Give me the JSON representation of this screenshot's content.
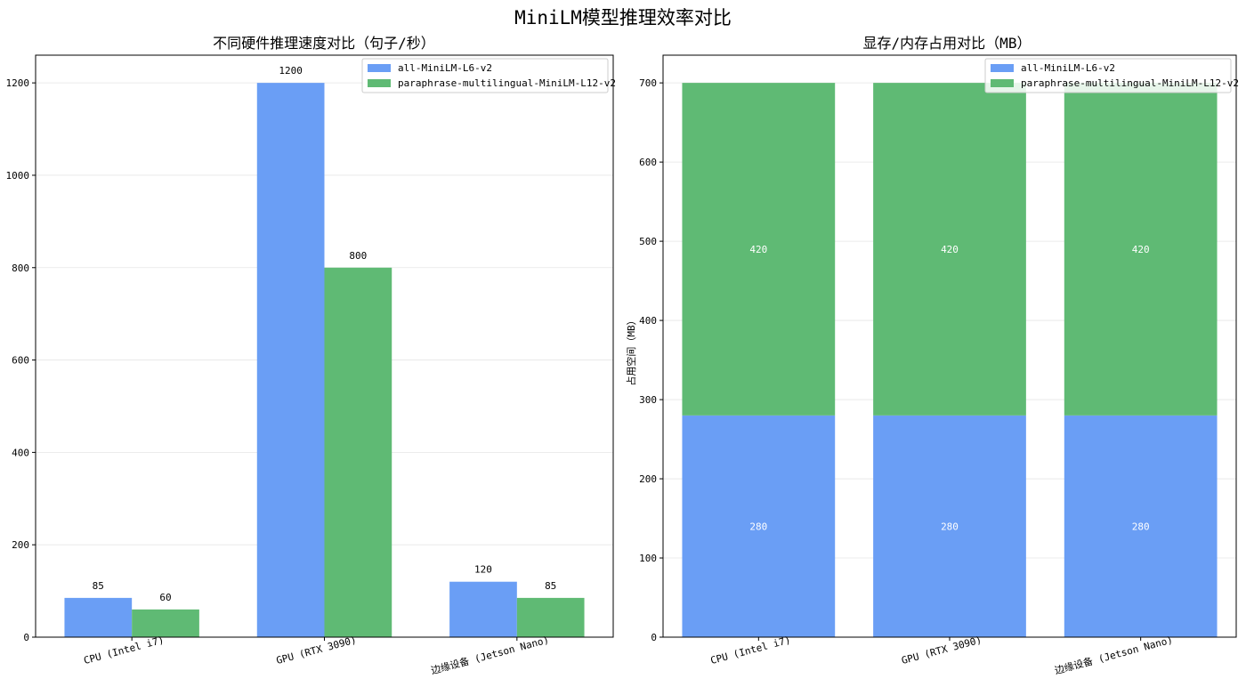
{
  "figure": {
    "title": "MiniLM模型推理效率对比"
  },
  "colors": {
    "model1": "#6a9ef5",
    "model2": "#5fba74",
    "grid": "#e6e6e6"
  },
  "chart_data": [
    {
      "type": "bar",
      "title": "不同硬件推理速度对比（句子/秒）",
      "xlabel": "",
      "ylabel": "",
      "categories": [
        "CPU (Intel i7)",
        "GPU (RTX 3090)",
        "边缘设备 (Jetson Nano)"
      ],
      "series": [
        {
          "name": "all-MiniLM-L6-v2",
          "values": [
            85,
            1200,
            120
          ]
        },
        {
          "name": "paraphrase-multilingual-MiniLM-L12-v2",
          "values": [
            60,
            800,
            85
          ]
        }
      ],
      "ylim": [
        0,
        1260
      ],
      "yticks": [
        0,
        200,
        400,
        600,
        800,
        1000,
        1200
      ],
      "grid": "y",
      "legend": "top-right"
    },
    {
      "type": "bar",
      "stacked": true,
      "title": "显存/内存占用对比（MB）",
      "xlabel": "",
      "ylabel": "占用空间（MB）",
      "categories": [
        "CPU (Intel i7)",
        "GPU (RTX 3090)",
        "边缘设备 (Jetson Nano)"
      ],
      "series": [
        {
          "name": "all-MiniLM-L6-v2",
          "values": [
            280,
            280,
            280
          ]
        },
        {
          "name": "paraphrase-multilingual-MiniLM-L12-v2",
          "values": [
            420,
            420,
            420
          ]
        }
      ],
      "ylim": [
        0,
        735
      ],
      "yticks": [
        0,
        100,
        200,
        300,
        400,
        500,
        600,
        700
      ],
      "grid": "y",
      "legend": "top-right"
    }
  ]
}
